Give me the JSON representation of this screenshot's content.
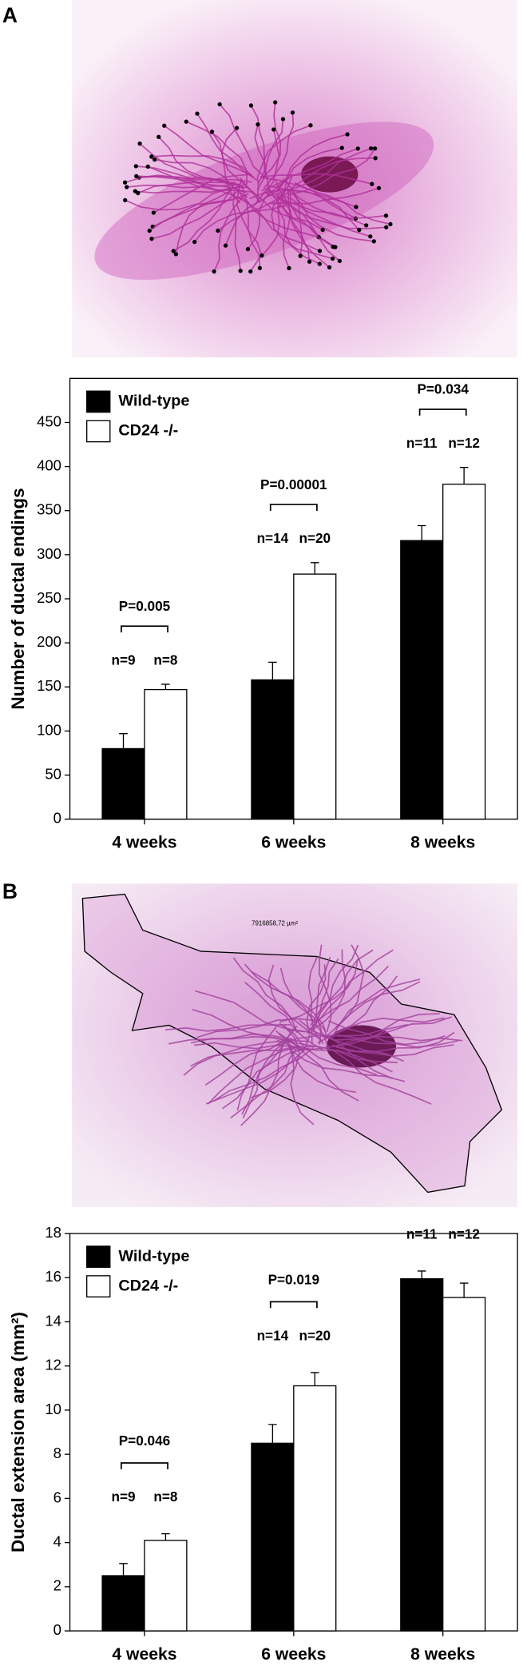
{
  "panel_labels": [
    "A",
    "B"
  ],
  "image_annotation": "7916858,72 µm²",
  "chart_data": [
    {
      "type": "bar",
      "ylabel": "Number of ductal endings",
      "categories": [
        "4 weeks",
        "6 weeks",
        "8 weeks"
      ],
      "series": [
        {
          "name": "Wild-type",
          "color": "#000000",
          "values": [
            80,
            158,
            316
          ],
          "errors": [
            17,
            20,
            17
          ]
        },
        {
          "name": "CD24 -/-",
          "color": "#ffffff",
          "values": [
            147,
            278,
            380
          ],
          "errors": [
            6,
            13,
            19
          ]
        }
      ],
      "ylim": [
        0,
        500
      ],
      "yticks": [
        0,
        50,
        100,
        150,
        200,
        250,
        300,
        350,
        400,
        450
      ],
      "legend": "upper left",
      "annotations": [
        {
          "p": "P=0.005",
          "n": [
            "n=9",
            "n=8"
          ]
        },
        {
          "p": "P=0.00001",
          "n": [
            "n=14",
            "n=20"
          ]
        },
        {
          "p": "P=0.034",
          "n": [
            "n=11",
            "n=12"
          ]
        }
      ]
    },
    {
      "type": "bar",
      "ylabel": "Ductal extension area (mm²)",
      "categories": [
        "4 weeks",
        "6 weeks",
        "8 weeks"
      ],
      "series": [
        {
          "name": "Wild-type",
          "color": "#000000",
          "values": [
            2.5,
            8.5,
            15.95
          ],
          "errors": [
            0.55,
            0.85,
            0.35
          ]
        },
        {
          "name": "CD24 -/-",
          "color": "#ffffff",
          "values": [
            4.1,
            11.1,
            15.1
          ],
          "errors": [
            0.3,
            0.6,
            0.65
          ]
        }
      ],
      "ylim": [
        0,
        18
      ],
      "yticks": [
        0,
        2,
        4,
        6,
        8,
        10,
        12,
        14,
        16,
        18
      ],
      "legend": "upper left",
      "annotations": [
        {
          "p": "P=0.046",
          "n": [
            "n=9",
            "n=8"
          ]
        },
        {
          "p": "P=0.019",
          "n": [
            "n=14",
            "n=20"
          ]
        },
        {
          "n": [
            "n=11",
            "n=12"
          ]
        }
      ]
    }
  ]
}
